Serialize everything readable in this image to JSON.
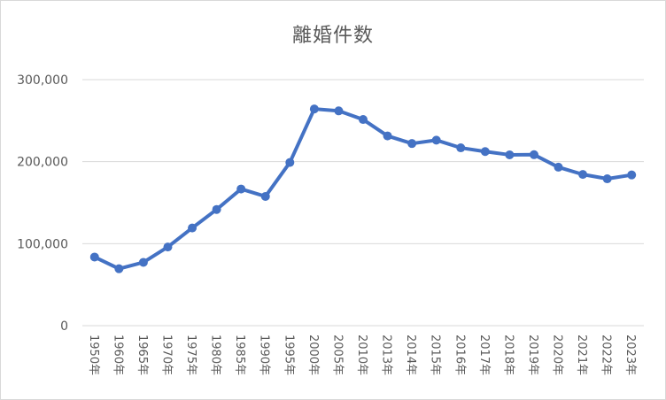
{
  "chart_data": {
    "type": "line",
    "title": "離婚件数",
    "xlabel": "",
    "ylabel": "",
    "ylim": [
      0,
      300000
    ],
    "yticks": [
      0,
      100000,
      200000,
      300000
    ],
    "ytick_labels": [
      "0",
      "100,000",
      "200,000",
      "300,000"
    ],
    "grid": true,
    "legend": "none",
    "colors": {
      "series": "#4472c4",
      "grid": "#d9d9d9",
      "text": "#595959"
    },
    "categories": [
      "1950年",
      "1960年",
      "1965年",
      "1970年",
      "1975年",
      "1980年",
      "1985年",
      "1990年",
      "1995年",
      "2000年",
      "2005年",
      "2010年",
      "2013年",
      "2014年",
      "2015年",
      "2016年",
      "2017年",
      "2018年",
      "2019年",
      "2020年",
      "2021年",
      "2022年",
      "2023年"
    ],
    "series": [
      {
        "values": [
          83689,
          69410,
          77195,
          95937,
          119135,
          141689,
          166640,
          157608,
          199016,
          264246,
          261917,
          251378,
          231383,
          222107,
          226238,
          216856,
          212296,
          208333,
          208496,
          193253,
          184384,
          179099,
          183808
        ]
      }
    ]
  }
}
